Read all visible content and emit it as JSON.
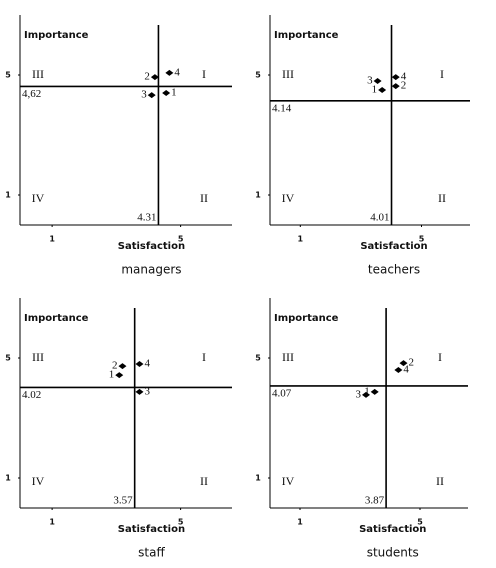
{
  "chart_data": [
    {
      "type": "scatter",
      "caption": "managers",
      "ylabel": "Importance",
      "xlabel": "Satisfaction",
      "xlim": [
        0,
        6.6
      ],
      "ylim": [
        0,
        7
      ],
      "xticks": [
        1,
        5
      ],
      "yticks": [
        1,
        5
      ],
      "vline": 4.31,
      "hline": {
        "value": 4.62,
        "label": "4,62"
      },
      "quadrants": [
        "I",
        "II",
        "III",
        "IV"
      ],
      "labels": [
        "1",
        "2",
        "3",
        "4"
      ],
      "x": [
        4.55,
        4.2,
        4.1,
        4.65
      ],
      "y": [
        4.4,
        4.93,
        4.33,
        5.07
      ]
    },
    {
      "type": "scatter",
      "caption": "teachers",
      "ylabel": "Importance",
      "xlabel": "Satisfaction",
      "xlim": [
        0,
        6.6
      ],
      "ylim": [
        0,
        7
      ],
      "xticks": [
        1,
        5
      ],
      "yticks": [
        1,
        5
      ],
      "vline": 4.01,
      "hline": 4.14,
      "quadrants": [
        "I",
        "II",
        "III",
        "IV"
      ],
      "labels": [
        "1",
        "2",
        "3",
        "4"
      ],
      "x": [
        3.7,
        4.15,
        3.55,
        4.15
      ],
      "y": [
        4.5,
        4.63,
        4.8,
        4.93
      ]
    },
    {
      "type": "scatter",
      "caption": "staff",
      "ylabel": "Importance",
      "xlabel": "Satisfaction",
      "xlim": [
        0,
        6.6
      ],
      "ylim": [
        0,
        7
      ],
      "xticks": [
        1,
        5
      ],
      "yticks": [
        1,
        5
      ],
      "vline": 3.57,
      "hline": 4.02,
      "quadrants": [
        "I",
        "II",
        "III",
        "IV"
      ],
      "labels": [
        "1",
        "2",
        "3",
        "4"
      ],
      "x": [
        3.09,
        3.19,
        3.72,
        3.72
      ],
      "y": [
        4.43,
        4.73,
        3.87,
        4.8
      ]
    },
    {
      "type": "scatter",
      "caption": "students",
      "ylabel": "Importance",
      "xlabel": "Satisfaction",
      "xlim": [
        0,
        6.6
      ],
      "ylim": [
        0,
        7
      ],
      "xticks": [
        1,
        5
      ],
      "yticks": [
        1,
        5
      ],
      "vline": 3.87,
      "hline": 4.07,
      "quadrants": [
        "I",
        "II",
        "III",
        "IV"
      ],
      "labels": [
        "1",
        "2",
        "3",
        "4"
      ],
      "x": [
        3.49,
        4.45,
        3.2,
        4.28
      ],
      "y": [
        3.87,
        4.83,
        3.77,
        4.6
      ]
    }
  ]
}
